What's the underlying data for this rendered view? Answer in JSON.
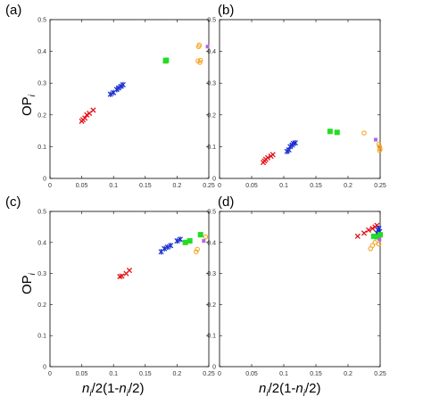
{
  "chart_data": {
    "type": "scatter",
    "ylabel": {
      "main": "OP",
      "sub": "i"
    },
    "xlabel": {
      "pre": "n",
      "sub": "i",
      "mid": "/2(1-",
      "pre2": "n",
      "sub2": "i",
      "post": "/2)"
    },
    "xlim": [
      0,
      0.25
    ],
    "ylim": [
      0,
      0.5
    ],
    "xticks": [
      "0",
      "0.05",
      "0.1",
      "0.15",
      "0.2",
      "0.25"
    ],
    "yticks": [
      "0",
      "0.1",
      "0.2",
      "0.3",
      "0.4",
      "0.5"
    ],
    "colors": {
      "red": "#e4121a",
      "blue": "#1a2fd0",
      "green": "#22dd22",
      "orange": "#f5a623",
      "purple": "#b366dd"
    },
    "panels": [
      {
        "label": "(a)",
        "series": [
          {
            "color": "red",
            "marker": "x",
            "points": [
              [
                0.05,
                0.18
              ],
              [
                0.052,
                0.185
              ],
              [
                0.055,
                0.19
              ],
              [
                0.058,
                0.2
              ],
              [
                0.062,
                0.205
              ],
              [
                0.068,
                0.215
              ]
            ]
          },
          {
            "color": "blue",
            "marker": "star",
            "points": [
              [
                0.095,
                0.265
              ],
              [
                0.1,
                0.27
              ],
              [
                0.105,
                0.28
              ],
              [
                0.108,
                0.285
              ],
              [
                0.112,
                0.29
              ],
              [
                0.115,
                0.295
              ]
            ]
          },
          {
            "color": "green",
            "marker": "square",
            "points": [
              [
                0.183,
                0.372
              ],
              [
                0.182,
                0.37
              ]
            ]
          },
          {
            "color": "orange",
            "marker": "circle",
            "points": [
              [
                0.234,
                0.415
              ],
              [
                0.235,
                0.42
              ],
              [
                0.233,
                0.37
              ],
              [
                0.236,
                0.365
              ],
              [
                0.237,
                0.372
              ]
            ]
          },
          {
            "color": "purple",
            "marker": "filled-square",
            "points": [
              [
                0.248,
                0.415
              ]
            ]
          }
        ]
      },
      {
        "label": "(b)",
        "series": [
          {
            "color": "red",
            "marker": "x",
            "points": [
              [
                0.068,
                0.05
              ],
              [
                0.07,
                0.055
              ],
              [
                0.072,
                0.06
              ],
              [
                0.075,
                0.065
              ],
              [
                0.08,
                0.07
              ],
              [
                0.083,
                0.075
              ]
            ]
          },
          {
            "color": "blue",
            "marker": "star",
            "points": [
              [
                0.105,
                0.085
              ],
              [
                0.108,
                0.09
              ],
              [
                0.11,
                0.1
              ],
              [
                0.113,
                0.105
              ],
              [
                0.115,
                0.11
              ],
              [
                0.118,
                0.112
              ]
            ]
          },
          {
            "color": "green",
            "marker": "square",
            "points": [
              [
                0.172,
                0.148
              ],
              [
                0.183,
                0.145
              ]
            ]
          },
          {
            "color": "orange",
            "marker": "circle",
            "points": [
              [
                0.225,
                0.143
              ],
              [
                0.248,
                0.108
              ],
              [
                0.249,
                0.1
              ],
              [
                0.25,
                0.093
              ],
              [
                0.249,
                0.088
              ]
            ]
          },
          {
            "color": "purple",
            "marker": "filled-square",
            "points": [
              [
                0.243,
                0.122
              ]
            ]
          }
        ]
      },
      {
        "label": "(c)",
        "series": [
          {
            "color": "red",
            "marker": "x",
            "points": [
              [
                0.11,
                0.29
              ],
              [
                0.113,
                0.292
              ],
              [
                0.12,
                0.3
              ],
              [
                0.125,
                0.31
              ]
            ]
          },
          {
            "color": "blue",
            "marker": "star",
            "points": [
              [
                0.175,
                0.37
              ],
              [
                0.18,
                0.38
              ],
              [
                0.185,
                0.385
              ],
              [
                0.19,
                0.39
              ],
              [
                0.2,
                0.405
              ],
              [
                0.205,
                0.41
              ]
            ]
          },
          {
            "color": "green",
            "marker": "square",
            "points": [
              [
                0.213,
                0.4
              ],
              [
                0.22,
                0.405
              ],
              [
                0.237,
                0.425
              ]
            ]
          },
          {
            "color": "orange",
            "marker": "circle",
            "points": [
              [
                0.23,
                0.37
              ],
              [
                0.232,
                0.378
              ],
              [
                0.245,
                0.418
              ]
            ]
          },
          {
            "color": "purple",
            "marker": "filled-square",
            "points": [
              [
                0.242,
                0.405
              ]
            ]
          }
        ]
      },
      {
        "label": "(d)",
        "series": [
          {
            "color": "red",
            "marker": "x",
            "points": [
              [
                0.215,
                0.42
              ],
              [
                0.225,
                0.43
              ],
              [
                0.232,
                0.44
              ],
              [
                0.238,
                0.445
              ],
              [
                0.242,
                0.45
              ],
              [
                0.245,
                0.455
              ]
            ]
          },
          {
            "color": "blue",
            "marker": "star",
            "points": [
              [
                0.245,
                0.43
              ],
              [
                0.247,
                0.44
              ],
              [
                0.248,
                0.445
              ],
              [
                0.249,
                0.435
              ]
            ]
          },
          {
            "color": "green",
            "marker": "square",
            "points": [
              [
                0.24,
                0.42
              ],
              [
                0.245,
                0.418
              ],
              [
                0.25,
                0.425
              ]
            ]
          },
          {
            "color": "orange",
            "marker": "circle",
            "points": [
              [
                0.235,
                0.38
              ],
              [
                0.238,
                0.39
              ],
              [
                0.242,
                0.4
              ],
              [
                0.248,
                0.395
              ]
            ]
          },
          {
            "color": "purple",
            "marker": "filled-square",
            "points": [
              [
                0.249,
                0.41
              ]
            ]
          }
        ]
      }
    ]
  }
}
